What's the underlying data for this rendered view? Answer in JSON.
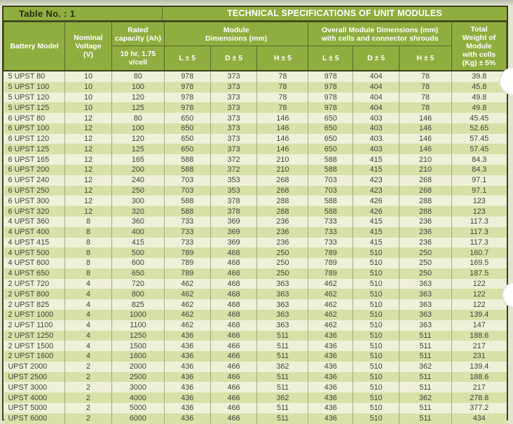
{
  "document": {
    "table_label": "Table No. : 1",
    "title": "TECHNICAL SPECIFICATIONS OF UNIT MODULES"
  },
  "colors": {
    "header_green": "#8fae3f",
    "row_light": "#eff0d8",
    "row_dark": "#d7e1a8",
    "border_dark": "#39411b",
    "header_text": "#ffffff",
    "data_text": "#3e4438"
  },
  "table": {
    "header": {
      "battery_model": "Battery Model",
      "nominal_voltage": "Nominal\nVoltage\n(V)",
      "rated_capacity": "Rated\ncapacity (Ah)",
      "rated_capacity_sub": "10 hr, 1.75\nv/cell",
      "module_dimensions": "Module\nDimensions (mm)",
      "overall_dimensions": "Overall Module Dimensions (mm)\nwith cells and connector shrouds",
      "sub_cols": [
        "L ± 5",
        "D ± 5",
        "H ± 5",
        "L ± 5",
        "D ± 5",
        "H ± 5"
      ],
      "total_weight": "Total\nWeight of\nModule\nwith cells\n(Kg) ± 5%"
    },
    "rows": [
      [
        "5 UPST 80",
        "10",
        "80",
        "978",
        "373",
        "78",
        "978",
        "404",
        "78",
        "39.8"
      ],
      [
        "5 UPST 100",
        "10",
        "100",
        "978",
        "373",
        "78",
        "978",
        "404",
        "78",
        "45.8"
      ],
      [
        "5 UPST 120",
        "10",
        "120",
        "978",
        "373",
        "78",
        "978",
        "404",
        "78",
        "49.8"
      ],
      [
        "5 UPST 125",
        "10",
        "125",
        "978",
        "373",
        "78",
        "978",
        "404",
        "78",
        "49.8"
      ],
      [
        "6 UPST 80",
        "12",
        "80",
        "650",
        "373",
        "146",
        "650",
        "403",
        "146",
        "45.45"
      ],
      [
        "6 UPST 100",
        "12",
        "100",
        "650",
        "373",
        "146",
        "650",
        "403",
        "146",
        "52.65"
      ],
      [
        "6 UPST 120",
        "12",
        "120",
        "650",
        "373",
        "146",
        "650",
        "403",
        "146",
        "57.45"
      ],
      [
        "6 UPST 125",
        "12",
        "125",
        "650",
        "373",
        "146",
        "650",
        "403",
        "146",
        "57.45"
      ],
      [
        "6 UPST 165",
        "12",
        "165",
        "588",
        "372",
        "210",
        "588",
        "415",
        "210",
        "84.3"
      ],
      [
        "6 UPST 200",
        "12",
        "200",
        "588",
        "372",
        "210",
        "588",
        "415",
        "210",
        "84.3"
      ],
      [
        "6 UPST 240",
        "12",
        "240",
        "703",
        "353",
        "268",
        "703",
        "423",
        "268",
        "97.1"
      ],
      [
        "6 UPST 250",
        "12",
        "250",
        "703",
        "353",
        "268",
        "703",
        "423",
        "268",
        "97.1"
      ],
      [
        "6 UPST 300",
        "12",
        "300",
        "588",
        "378",
        "288",
        "588",
        "426",
        "288",
        "123"
      ],
      [
        "6 UPST 320",
        "12",
        "320",
        "588",
        "378",
        "288",
        "588",
        "426",
        "288",
        "123"
      ],
      [
        "4 UPST 360",
        "8",
        "360",
        "733",
        "369",
        "236",
        "733",
        "415",
        "236",
        "117.3"
      ],
      [
        "4 UPST 400",
        "8",
        "400",
        "733",
        "369",
        "236",
        "733",
        "415",
        "236",
        "117.3"
      ],
      [
        "4 UPST 415",
        "8",
        "415",
        "733",
        "369",
        "236",
        "733",
        "415",
        "236",
        "117.3"
      ],
      [
        "4 UPST 500",
        "8",
        "500",
        "789",
        "468",
        "250",
        "789",
        "510",
        "250",
        "160.7"
      ],
      [
        "4 UPST 600",
        "8",
        "600",
        "789",
        "468",
        "250",
        "789",
        "510",
        "250",
        "169.5"
      ],
      [
        "4 UPST 650",
        "8",
        "650",
        "789",
        "468",
        "250",
        "789",
        "510",
        "250",
        "187.5"
      ],
      [
        "2 UPST 720",
        "4",
        "720",
        "462",
        "468",
        "363",
        "462",
        "510",
        "363",
        "122"
      ],
      [
        "2 UPST 800",
        "4",
        "800",
        "462",
        "468",
        "363",
        "462",
        "510",
        "363",
        "122"
      ],
      [
        "2 UPST 825",
        "4",
        "825",
        "462",
        "468",
        "363",
        "462",
        "510",
        "363",
        "122"
      ],
      [
        "2 UPST 1000",
        "4",
        "1000",
        "462",
        "468",
        "363",
        "462",
        "510",
        "363",
        "139.4"
      ],
      [
        "2 UPST 1100",
        "4",
        "1100",
        "462",
        "468",
        "363",
        "462",
        "510",
        "363",
        "147"
      ],
      [
        "2 UPST 1250",
        "4",
        "1250",
        "436",
        "466",
        "511",
        "436",
        "510",
        "511",
        "188.6"
      ],
      [
        "2 UPST 1500",
        "4",
        "1500",
        "436",
        "466",
        "511",
        "436",
        "510",
        "511",
        "217"
      ],
      [
        "2 UPST 1600",
        "4",
        "1600",
        "436",
        "466",
        "511",
        "436",
        "510",
        "511",
        "231"
      ],
      [
        "UPST 2000",
        "2",
        "2000",
        "436",
        "466",
        "362",
        "436",
        "510",
        "362",
        "139.4"
      ],
      [
        "UPST 2500",
        "2",
        "2500",
        "436",
        "466",
        "511",
        "436",
        "510",
        "511",
        "188.6"
      ],
      [
        "UPST 3000",
        "2",
        "3000",
        "436",
        "466",
        "511",
        "436",
        "510",
        "511",
        "217"
      ],
      [
        "UPST 4000",
        "2",
        "4000",
        "436",
        "466",
        "362",
        "436",
        "510",
        "362",
        "278.8"
      ],
      [
        "UPST 5000",
        "2",
        "5000",
        "436",
        "466",
        "511",
        "436",
        "510",
        "511",
        "377.2"
      ],
      [
        "UPST 6000",
        "2",
        "6000",
        "436",
        "466",
        "511",
        "436",
        "510",
        "511",
        "434"
      ]
    ]
  }
}
